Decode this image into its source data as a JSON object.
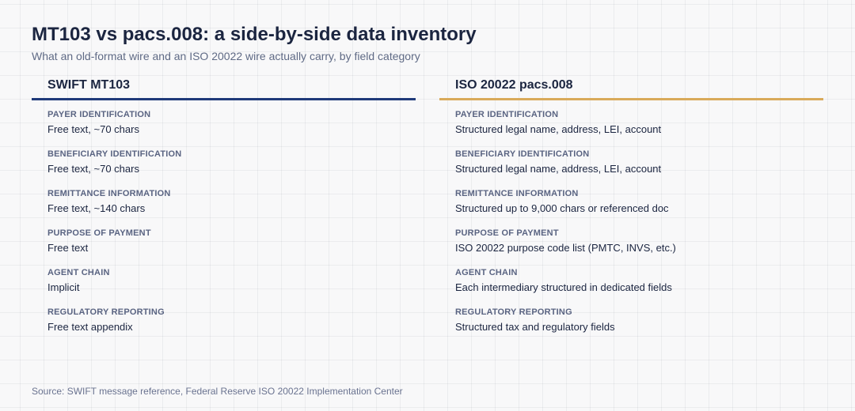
{
  "title": "MT103 vs pacs.008: a side-by-side data inventory",
  "subtitle": "What an old-format wire and an ISO 20022 wire actually carry, by field category",
  "columns": [
    {
      "header": "SWIFT MT103",
      "accent_color": "#1f3a7a",
      "rows": [
        {
          "label": "PAYER IDENTIFICATION",
          "value": "Free text, ~70 chars"
        },
        {
          "label": "BENEFICIARY IDENTIFICATION",
          "value": "Free text, ~70 chars"
        },
        {
          "label": "REMITTANCE INFORMATION",
          "value": "Free text, ~140 chars"
        },
        {
          "label": "PURPOSE OF PAYMENT",
          "value": "Free text"
        },
        {
          "label": "AGENT CHAIN",
          "value": "Implicit"
        },
        {
          "label": "REGULATORY REPORTING",
          "value": "Free text appendix"
        }
      ]
    },
    {
      "header": "ISO 20022 pacs.008",
      "accent_color": "#d9aa5a",
      "rows": [
        {
          "label": "PAYER IDENTIFICATION",
          "value": "Structured legal name, address, LEI, account"
        },
        {
          "label": "BENEFICIARY IDENTIFICATION",
          "value": "Structured legal name, address, LEI, account"
        },
        {
          "label": "REMITTANCE INFORMATION",
          "value": "Structured up to 9,000 chars or referenced doc"
        },
        {
          "label": "PURPOSE OF PAYMENT",
          "value": "ISO 20022 purpose code list (PMTC, INVS, etc.)"
        },
        {
          "label": "AGENT CHAIN",
          "value": "Each intermediary structured in dedicated fields"
        },
        {
          "label": "REGULATORY REPORTING",
          "value": "Structured tax and regulatory fields"
        }
      ]
    }
  ],
  "source": "Source: SWIFT message reference, Federal Reserve ISO 20022 Implementation Center"
}
